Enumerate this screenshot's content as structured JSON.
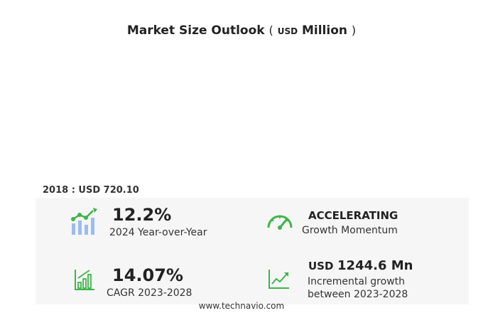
{
  "header": {
    "title": "Market Size Outlook",
    "paren_open": "(",
    "unit_currency": "USD",
    "unit_scale": "Million",
    "paren_close": ")"
  },
  "base_year": {
    "label": "2018 : USD  720.10"
  },
  "metrics": {
    "yoy": {
      "value": "12.2%",
      "label": "2024 Year-over-Year",
      "icon": "bar-line-growth-icon"
    },
    "momentum": {
      "value": "ACCELERATING",
      "label": "Growth Momentum",
      "icon": "speedometer-icon"
    },
    "cagr": {
      "value": "14.07%",
      "label": "CAGR 2023-2028",
      "icon": "bar-chart-growth-icon"
    },
    "incremental": {
      "currency": "USD",
      "value": "1244.6 Mn",
      "label_line1": "Incremental growth",
      "label_line2": "between 2023-2028",
      "icon": "line-chart-icon"
    }
  },
  "footer": {
    "site": "www.technavio.com"
  },
  "colors": {
    "accent_green": "#3db54a",
    "accent_blue": "#7fa7e6",
    "panel_bg": "#f6f6f6"
  }
}
